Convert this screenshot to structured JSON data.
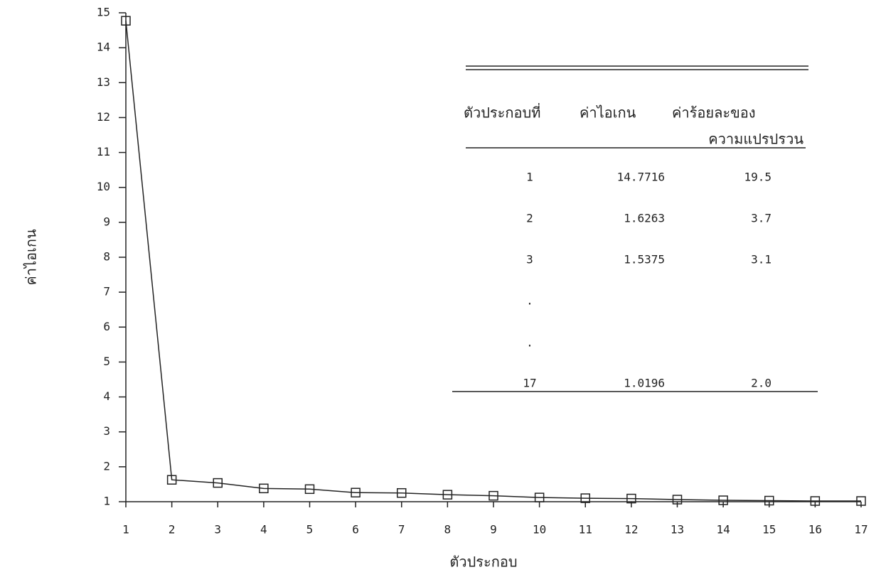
{
  "chart_data": {
    "type": "line",
    "x_label": "ตัวประกอบ",
    "y_label": "ค่าไอเกน",
    "x": [
      1,
      2,
      3,
      4,
      5,
      6,
      7,
      8,
      9,
      10,
      11,
      12,
      13,
      14,
      15,
      16,
      17
    ],
    "series": [
      {
        "name": "ค่าไอเกน",
        "color": "#222222",
        "values": [
          14.7716,
          1.6263,
          1.5375,
          1.38,
          1.36,
          1.26,
          1.25,
          1.2,
          1.17,
          1.12,
          1.1,
          1.09,
          1.06,
          1.04,
          1.03,
          1.02,
          1.0196
        ]
      }
    ],
    "xlim": [
      1,
      17
    ],
    "xticks": [
      1,
      2,
      3,
      4,
      5,
      6,
      7,
      8,
      9,
      10,
      11,
      12,
      13,
      14,
      15,
      16,
      17
    ],
    "ylim": [
      1,
      15
    ],
    "yticks": [
      1,
      2,
      3,
      4,
      5,
      6,
      7,
      8,
      9,
      10,
      11,
      12,
      13,
      14,
      15
    ],
    "grid": false,
    "marker": "square",
    "table": {
      "header": [
        "ตัวประกอบที่",
        "ค่าไอเกน",
        "ค่าร้อยละของ"
      ],
      "header_line2": "ความแปรปรวน",
      "rows": [
        [
          "1",
          "14.7716",
          "19.5"
        ],
        [
          "2",
          "1.6263",
          "3.7"
        ],
        [
          "3",
          "1.5375",
          "3.1"
        ],
        [
          "."
        ],
        [
          "."
        ],
        [
          "17",
          "1.0196",
          "2.0"
        ]
      ]
    }
  }
}
